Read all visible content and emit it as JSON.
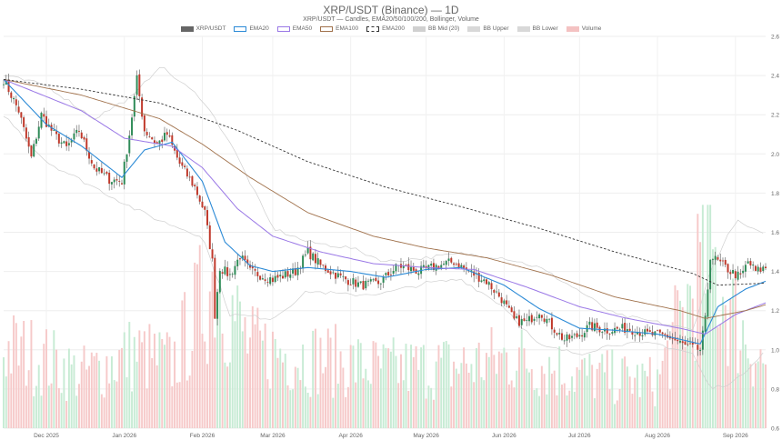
{
  "chart_data": {
    "type": "candlestick",
    "title": "XRP/USDT (Binance) — 1D",
    "subtitle": "XRP/USDT — Candles, EMA20/50/100/200, Bollinger, Volume",
    "legend": [
      {
        "name": "XRP/USDT",
        "color": "#666666",
        "style": "fill"
      },
      {
        "name": "EMA20",
        "color": "#2b8ad6",
        "style": "line"
      },
      {
        "name": "EMA50",
        "color": "#9a78e6",
        "style": "line"
      },
      {
        "name": "EMA100",
        "color": "#a0714b",
        "style": "line"
      },
      {
        "name": "EMA200",
        "color": "#333333",
        "style": "dashed"
      },
      {
        "name": "BB Mid (20)",
        "color": "#d0d0d0",
        "style": "fill"
      },
      {
        "name": "BB Upper",
        "color": "#d8d8d8",
        "style": "fill"
      },
      {
        "name": "BB Lower",
        "color": "#d8d8d8",
        "style": "fill"
      },
      {
        "name": "Volume",
        "color": "#f4c2c2",
        "style": "fill"
      }
    ],
    "legend_position": "top-center",
    "y_axis": {
      "position": "right",
      "min": 0.6,
      "max": 2.6,
      "ticks": [
        "0.6",
        "0.8",
        "1.0",
        "1.2",
        "1.4",
        "1.6",
        "1.8",
        "2.0",
        "2.2",
        "2.4",
        "2.6"
      ]
    },
    "x_axis": {
      "start": "2025-11-14",
      "end": "2026-09-13",
      "tick_labels": [
        {
          "label": "Dec 2025",
          "date": "2025-12-01"
        },
        {
          "label": "Jan 2026",
          "date": "2026-01-01"
        },
        {
          "label": "Feb 2026",
          "date": "2026-02-01"
        },
        {
          "label": "Mar 2026",
          "date": "2026-03-01"
        },
        {
          "label": "Apr 2026",
          "date": "2026-04-01"
        },
        {
          "label": "May 2026",
          "date": "2026-05-01"
        },
        {
          "label": "Jun 2026",
          "date": "2026-06-01"
        },
        {
          "label": "Jul 2026",
          "date": "2026-07-01"
        },
        {
          "label": "Aug 2026",
          "date": "2026-08-01"
        },
        {
          "label": "Sep 2026",
          "date": "2026-09-01"
        }
      ]
    },
    "grid": true,
    "price_anchors": [
      [
        "2025-11-14",
        2.38
      ],
      [
        "2025-11-20",
        2.22
      ],
      [
        "2025-11-25",
        1.98
      ],
      [
        "2025-11-29",
        2.2
      ],
      [
        "2025-12-04",
        2.1
      ],
      [
        "2025-12-09",
        2.03
      ],
      [
        "2025-12-14",
        2.12
      ],
      [
        "2025-12-20",
        1.93
      ],
      [
        "2025-12-26",
        1.87
      ],
      [
        "2025-12-31",
        1.86
      ],
      [
        "2026-01-03",
        2.1
      ],
      [
        "2026-01-06",
        2.38
      ],
      [
        "2026-01-09",
        2.12
      ],
      [
        "2026-01-14",
        2.05
      ],
      [
        "2026-01-18",
        2.1
      ],
      [
        "2026-01-23",
        1.95
      ],
      [
        "2026-01-29",
        1.83
      ],
      [
        "2026-02-02",
        1.7
      ],
      [
        "2026-02-05",
        1.45
      ],
      [
        "2026-02-06",
        1.18
      ],
      [
        "2026-02-08",
        1.42
      ],
      [
        "2026-02-12",
        1.38
      ],
      [
        "2026-02-16",
        1.48
      ],
      [
        "2026-02-20",
        1.4
      ],
      [
        "2026-03-01",
        1.36
      ],
      [
        "2026-03-10",
        1.4
      ],
      [
        "2026-03-15",
        1.5
      ],
      [
        "2026-03-20",
        1.43
      ],
      [
        "2026-03-28",
        1.37
      ],
      [
        "2026-04-05",
        1.33
      ],
      [
        "2026-04-12",
        1.34
      ],
      [
        "2026-04-20",
        1.43
      ],
      [
        "2026-04-28",
        1.4
      ],
      [
        "2026-05-06",
        1.43
      ],
      [
        "2026-05-12",
        1.45
      ],
      [
        "2026-05-18",
        1.4
      ],
      [
        "2026-05-25",
        1.35
      ],
      [
        "2026-05-31",
        1.26
      ],
      [
        "2026-06-05",
        1.15
      ],
      [
        "2026-06-10",
        1.14
      ],
      [
        "2026-06-15",
        1.2
      ],
      [
        "2026-06-20",
        1.12
      ],
      [
        "2026-06-25",
        1.05
      ],
      [
        "2026-06-30",
        1.07
      ],
      [
        "2026-07-05",
        1.12
      ],
      [
        "2026-07-12",
        1.1
      ],
      [
        "2026-07-20",
        1.11
      ],
      [
        "2026-07-28",
        1.08
      ],
      [
        "2026-08-05",
        1.07
      ],
      [
        "2026-08-12",
        1.02
      ],
      [
        "2026-08-18",
        1.0
      ],
      [
        "2026-08-20",
        1.15
      ],
      [
        "2026-08-22",
        1.48
      ],
      [
        "2026-08-25",
        1.45
      ],
      [
        "2026-08-30",
        1.4
      ],
      [
        "2026-09-03",
        1.37
      ],
      [
        "2026-09-06",
        1.45
      ],
      [
        "2026-09-09",
        1.4
      ],
      [
        "2026-09-13",
        1.42
      ]
    ],
    "ema_anchors": {
      "EMA20": [
        [
          "2025-11-14",
          2.38
        ],
        [
          "2025-12-01",
          2.15
        ],
        [
          "2025-12-15",
          2.04
        ],
        [
          "2025-12-31",
          1.88
        ],
        [
          "2026-01-09",
          2.02
        ],
        [
          "2026-01-20",
          2.06
        ],
        [
          "2026-02-01",
          1.86
        ],
        [
          "2026-02-10",
          1.55
        ],
        [
          "2026-02-20",
          1.43
        ],
        [
          "2026-03-01",
          1.4
        ],
        [
          "2026-03-15",
          1.42
        ],
        [
          "2026-04-01",
          1.4
        ],
        [
          "2026-04-15",
          1.37
        ],
        [
          "2026-05-01",
          1.41
        ],
        [
          "2026-05-15",
          1.42
        ],
        [
          "2026-06-01",
          1.33
        ],
        [
          "2026-06-15",
          1.21
        ],
        [
          "2026-07-01",
          1.11
        ],
        [
          "2026-07-15",
          1.1
        ],
        [
          "2026-08-01",
          1.08
        ],
        [
          "2026-08-18",
          1.03
        ],
        [
          "2026-08-25",
          1.22
        ],
        [
          "2026-09-05",
          1.31
        ],
        [
          "2026-09-13",
          1.35
        ]
      ],
      "EMA50": [
        [
          "2025-11-14",
          2.38
        ],
        [
          "2025-12-15",
          2.22
        ],
        [
          "2026-01-01",
          2.08
        ],
        [
          "2026-01-20",
          2.04
        ],
        [
          "2026-02-01",
          1.93
        ],
        [
          "2026-02-15",
          1.72
        ],
        [
          "2026-03-01",
          1.58
        ],
        [
          "2026-03-20",
          1.5
        ],
        [
          "2026-04-10",
          1.44
        ],
        [
          "2026-05-01",
          1.42
        ],
        [
          "2026-05-20",
          1.41
        ],
        [
          "2026-06-10",
          1.32
        ],
        [
          "2026-07-01",
          1.22
        ],
        [
          "2026-07-20",
          1.16
        ],
        [
          "2026-08-10",
          1.11
        ],
        [
          "2026-08-20",
          1.08
        ],
        [
          "2026-09-01",
          1.18
        ],
        [
          "2026-09-13",
          1.24
        ]
      ],
      "EMA100": [
        [
          "2025-11-14",
          2.38
        ],
        [
          "2025-12-15",
          2.3
        ],
        [
          "2026-01-15",
          2.18
        ],
        [
          "2026-02-01",
          2.05
        ],
        [
          "2026-02-20",
          1.88
        ],
        [
          "2026-03-15",
          1.7
        ],
        [
          "2026-04-10",
          1.58
        ],
        [
          "2026-05-01",
          1.52
        ],
        [
          "2026-05-25",
          1.47
        ],
        [
          "2026-06-20",
          1.38
        ],
        [
          "2026-07-15",
          1.27
        ],
        [
          "2026-08-10",
          1.2
        ],
        [
          "2026-08-20",
          1.16
        ],
        [
          "2026-09-05",
          1.2
        ],
        [
          "2026-09-13",
          1.23
        ]
      ],
      "EMA200": [
        [
          "2025-11-14",
          2.38
        ],
        [
          "2025-12-15",
          2.33
        ],
        [
          "2026-01-15",
          2.26
        ],
        [
          "2026-02-15",
          2.12
        ],
        [
          "2026-03-15",
          1.96
        ],
        [
          "2026-04-15",
          1.83
        ],
        [
          "2026-05-15",
          1.73
        ],
        [
          "2026-06-15",
          1.62
        ],
        [
          "2026-07-15",
          1.5
        ],
        [
          "2026-08-15",
          1.39
        ],
        [
          "2026-08-25",
          1.33
        ],
        [
          "2026-09-13",
          1.34
        ]
      ]
    },
    "bb_upper_anchors": [
      [
        "2025-11-14",
        2.4
      ],
      [
        "2025-12-01",
        2.35
      ],
      [
        "2025-12-20",
        2.18
      ],
      [
        "2026-01-05",
        2.3
      ],
      [
        "2026-01-15",
        2.45
      ],
      [
        "2026-02-01",
        2.28
      ],
      [
        "2026-02-12",
        2.06
      ],
      [
        "2026-03-01",
        1.62
      ],
      [
        "2026-03-15",
        1.55
      ],
      [
        "2026-04-01",
        1.52
      ],
      [
        "2026-04-15",
        1.45
      ],
      [
        "2026-05-01",
        1.47
      ],
      [
        "2026-05-15",
        1.49
      ],
      [
        "2026-06-01",
        1.47
      ],
      [
        "2026-06-15",
        1.42
      ],
      [
        "2026-07-01",
        1.3
      ],
      [
        "2026-07-15",
        1.18
      ],
      [
        "2026-08-01",
        1.14
      ],
      [
        "2026-08-15",
        1.1
      ],
      [
        "2026-08-22",
        1.4
      ],
      [
        "2026-09-01",
        1.66
      ],
      [
        "2026-09-13",
        1.58
      ]
    ],
    "bb_lower_anchors": [
      [
        "2025-11-14",
        2.2
      ],
      [
        "2025-12-01",
        1.96
      ],
      [
        "2025-12-20",
        1.83
      ],
      [
        "2026-01-05",
        1.72
      ],
      [
        "2026-01-15",
        1.66
      ],
      [
        "2026-02-01",
        1.58
      ],
      [
        "2026-02-12",
        1.18
      ],
      [
        "2026-03-01",
        1.16
      ],
      [
        "2026-03-15",
        1.3
      ],
      [
        "2026-04-01",
        1.28
      ],
      [
        "2026-04-15",
        1.29
      ],
      [
        "2026-05-01",
        1.34
      ],
      [
        "2026-05-15",
        1.36
      ],
      [
        "2026-06-01",
        1.22
      ],
      [
        "2026-06-15",
        1.02
      ],
      [
        "2026-07-01",
        0.98
      ],
      [
        "2026-07-15",
        1.03
      ],
      [
        "2026-08-01",
        1.03
      ],
      [
        "2026-08-15",
        0.98
      ],
      [
        "2026-08-22",
        0.8
      ],
      [
        "2026-09-01",
        0.84
      ],
      [
        "2026-09-13",
        1.0
      ]
    ],
    "volume_anchors": [
      [
        "2025-11-14",
        0.45
      ],
      [
        "2025-11-28",
        0.4
      ],
      [
        "2025-12-15",
        0.3
      ],
      [
        "2026-01-05",
        0.42
      ],
      [
        "2026-01-20",
        0.36
      ],
      [
        "2026-02-06",
        0.85
      ],
      [
        "2026-02-20",
        0.45
      ],
      [
        "2026-03-15",
        0.4
      ],
      [
        "2026-04-15",
        0.33
      ],
      [
        "2026-05-15",
        0.35
      ],
      [
        "2026-06-05",
        0.4
      ],
      [
        "2026-07-01",
        0.3
      ],
      [
        "2026-08-01",
        0.26
      ],
      [
        "2026-08-21",
        1.0
      ],
      [
        "2026-09-01",
        0.6
      ],
      [
        "2026-09-13",
        0.34
      ]
    ]
  }
}
